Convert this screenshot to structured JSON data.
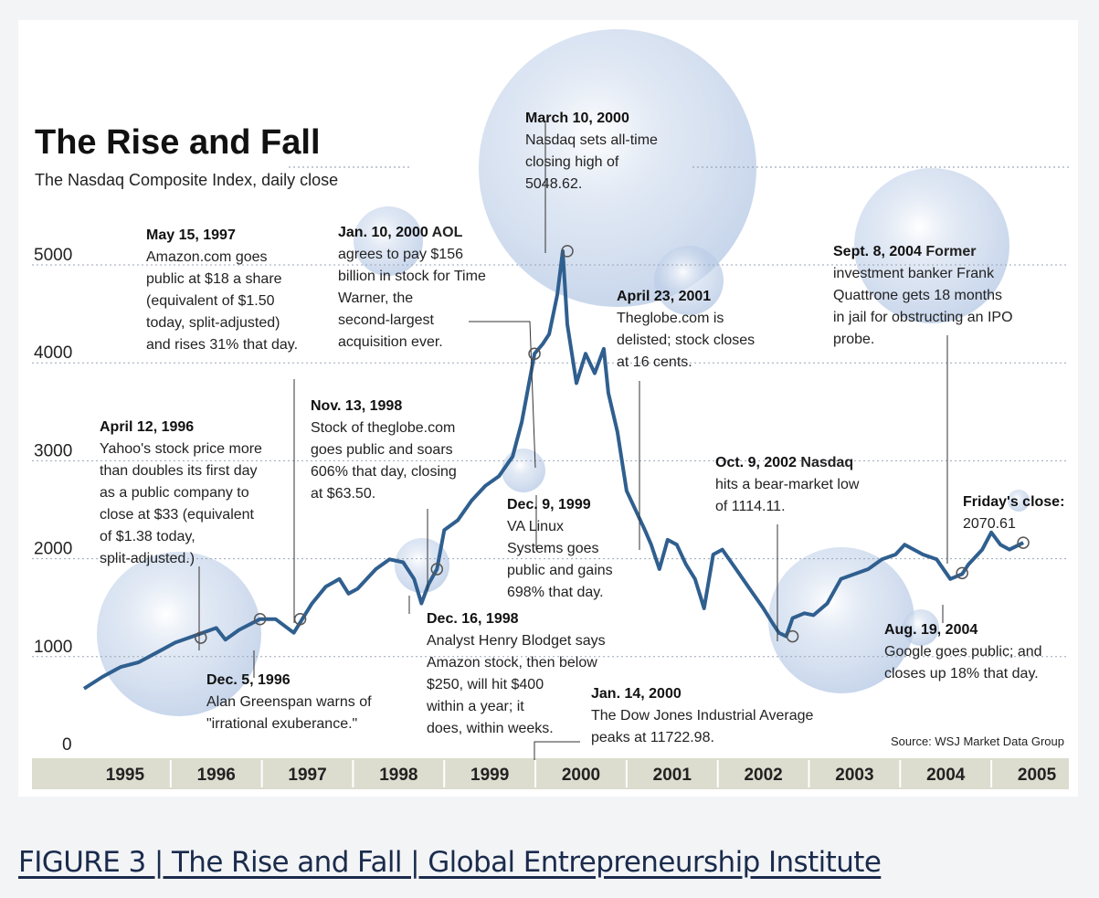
{
  "caption": "FIGURE 3 | The Rise and Fall | Global Entrepreneurship Institute",
  "colors": {
    "line": "#2f5f8f",
    "bubble": "#b9cbe6",
    "axis_band": "#dcdccf"
  },
  "chart_data": {
    "type": "line",
    "title": "The Rise and Fall",
    "subtitle": "The Nasdaq Composite Index, daily close",
    "source": "Source: WSJ Market Data Group",
    "ylim": [
      0,
      5000
    ],
    "yticks": [
      "0",
      "1000",
      "2000",
      "3000",
      "4000",
      "5000"
    ],
    "xlim": [
      1995.0,
      2005.75
    ],
    "categories": [
      "1995",
      "1996",
      "1997",
      "1998",
      "1999",
      "2000",
      "2001",
      "2002",
      "2003",
      "2004",
      "2005"
    ],
    "grid": true,
    "series": [
      {
        "x": [
          1995.0,
          1995.2,
          1995.4,
          1995.6,
          1995.8,
          1996.0,
          1996.15,
          1996.3,
          1996.45,
          1996.55,
          1996.7,
          1996.93,
          1997.1,
          1997.3,
          1997.5,
          1997.65,
          1997.8,
          1997.9,
          1998.0,
          1998.2,
          1998.35,
          1998.5,
          1998.62,
          1998.7,
          1998.78,
          1998.87,
          1998.95,
          1999.1,
          1999.25,
          1999.4,
          1999.55,
          1999.7,
          1999.8,
          1999.94,
          2000.03,
          2000.1,
          2000.19,
          2000.25,
          2000.3,
          2000.4,
          2000.5,
          2000.6,
          2000.7,
          2000.75,
          2000.85,
          2000.95,
          2001.05,
          2001.15,
          2001.22,
          2001.31,
          2001.4,
          2001.5,
          2001.6,
          2001.7,
          2001.8,
          2001.9,
          2002.0,
          2002.15,
          2002.3,
          2002.45,
          2002.55,
          2002.62,
          2002.7,
          2002.77,
          2002.9,
          2003.0,
          2003.15,
          2003.3,
          2003.45,
          2003.6,
          2003.75,
          2003.9,
          2004.0,
          2004.1,
          2004.2,
          2004.35,
          2004.5,
          2004.63,
          2004.7,
          2004.85,
          2004.95,
          2005.05,
          2005.15,
          2005.3
        ],
        "y": [
          580,
          700,
          800,
          850,
          950,
          1050,
          1100,
          1150,
          1200,
          1080,
          1180,
          1290,
          1290,
          1150,
          1450,
          1620,
          1700,
          1550,
          1600,
          1800,
          1900,
          1870,
          1700,
          1450,
          1650,
          1800,
          2200,
          2300,
          2500,
          2650,
          2750,
          2950,
          3300,
          4000,
          4100,
          4200,
          4600,
          5048,
          4300,
          3700,
          4000,
          3800,
          4050,
          3600,
          3200,
          2600,
          2400,
          2200,
          2050,
          1800,
          2100,
          2050,
          1850,
          1700,
          1400,
          1950,
          2000,
          1800,
          1600,
          1400,
          1250,
          1150,
          1114,
          1300,
          1350,
          1330,
          1450,
          1700,
          1750,
          1800,
          1900,
          1950,
          2050,
          2000,
          1950,
          1900,
          1700,
          1750,
          1850,
          2000,
          2175,
          2050,
          2000,
          2070
        ]
      }
    ],
    "markers": [
      {
        "x": 1996.28,
        "y": 1100
      },
      {
        "x": 1996.93,
        "y": 1290
      },
      {
        "x": 1997.37,
        "y": 1290
      },
      {
        "x": 1998.87,
        "y": 1800
      },
      {
        "x": 1999.94,
        "y": 4000
      },
      {
        "x": 2000.3,
        "y": 5048
      },
      {
        "x": 2002.77,
        "y": 1114
      },
      {
        "x": 2004.63,
        "y": 1760
      },
      {
        "x": 2005.3,
        "y": 2070
      }
    ],
    "annotations": [
      {
        "head": "April 12, 1996",
        "lines": [
          "Yahoo's stock price more",
          "than doubles its first day",
          "as a public company to",
          "close at $33 (equivalent",
          "of $1.38 today,",
          "split-adjusted.)"
        ]
      },
      {
        "head": "May 15, 1997",
        "lines": [
          "Amazon.com goes",
          "public at $18 a share",
          "(equivalent of $1.50",
          "today, split-adjusted)",
          "and rises 31% that day."
        ]
      },
      {
        "head": "Dec. 5, 1996",
        "lines": [
          "Alan Greenspan warns of",
          "\"irrational exuberance.\""
        ]
      },
      {
        "head": "Nov. 13, 1998",
        "lines": [
          "Stock of theglobe.com",
          "goes public and soars",
          "606% that day, closing",
          "at $63.50."
        ]
      },
      {
        "head": "Jan. 10, 2000",
        "head_tail": " AOL",
        "lines": [
          "agrees to pay $156",
          "billion in stock for Time",
          "Warner, the",
          "second-largest",
          "acquisition ever."
        ]
      },
      {
        "head": "March 10, 2000",
        "lines": [
          "Nasdaq sets all-time",
          "closing high of",
          "5048.62."
        ]
      },
      {
        "head": "Dec. 9, 1999",
        "lines": [
          "VA Linux",
          "Systems goes",
          "public and gains",
          "698% that day."
        ]
      },
      {
        "head": "Dec. 16, 1998",
        "lines": [
          "Analyst Henry Blodget says",
          "Amazon stock, then below",
          "$250, will hit $400",
          "within a year; it",
          "does, within weeks."
        ]
      },
      {
        "head": "Jan. 14, 2000",
        "lines": [
          "The Dow Jones Industrial Average",
          "peaks at 11722.98."
        ]
      },
      {
        "head": "April 23, 2001",
        "lines": [
          "Theglobe.com is",
          "delisted; stock closes",
          "at 16 cents."
        ]
      },
      {
        "head": "Oct. 9, 2002",
        "head_tail": " Nasdaq",
        "lines": [
          "hits a bear-market low",
          "of 1114.11."
        ]
      },
      {
        "head": "Sept. 8, 2004",
        "head_tail": " Former",
        "lines": [
          "investment banker Frank",
          "Quattrone gets 18 months",
          "in jail for obstructing an IPO",
          "probe."
        ]
      },
      {
        "head": "Aug. 19, 2004",
        "lines": [
          "Google goes public; and",
          "closes up 18% that day."
        ]
      },
      {
        "head": "Friday's close:",
        "lines": [
          "2070.61"
        ]
      }
    ]
  }
}
